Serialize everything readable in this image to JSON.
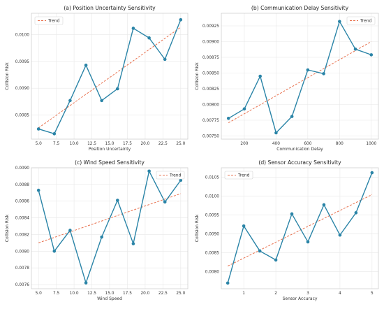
{
  "colors": {
    "series": "#2a84a7",
    "trend": "#e8714e",
    "grid": "#e8e8e8",
    "frame": "#cfcfcf"
  },
  "chart_data": [
    {
      "type": "line",
      "title": "(a) Position Uncertainty Sensitivity",
      "xlabel": "Position Uncertainty",
      "ylabel": "Collision Risk",
      "x": [
        5.0,
        7.22,
        9.44,
        11.67,
        13.89,
        16.11,
        18.33,
        20.56,
        22.78,
        25.0
      ],
      "series": [
        {
          "values": [
            0.00824,
            0.00815,
            0.00877,
            0.00943,
            0.00877,
            0.00899,
            0.01012,
            0.00994,
            0.00954,
            0.01028
          ]
        }
      ],
      "trend": {
        "name": "Trend",
        "start": 0.00826,
        "end": 0.01014
      },
      "xlim": [
        4.0,
        26.0
      ],
      "ylim": [
        0.00805,
        0.0104
      ],
      "xticks": [
        5.0,
        7.5,
        10.0,
        12.5,
        15.0,
        17.5,
        20.0,
        22.5,
        25.0
      ],
      "xtick_labels": [
        "5.0",
        "7.5",
        "10.0",
        "12.5",
        "15.0",
        "17.5",
        "20.0",
        "22.5",
        "25.0"
      ],
      "yticks": [
        0.0085,
        0.009,
        0.0095,
        0.01
      ],
      "ytick_labels": [
        "0.0085",
        "0.0090",
        "0.0095",
        "0.0100"
      ],
      "grid": true,
      "legend_position": "top-left"
    },
    {
      "type": "line",
      "title": "(b) Communication Delay Sensitivity",
      "xlabel": "Communication Delay",
      "ylabel": "Collision Risk",
      "x": [
        100,
        200,
        300,
        400,
        500,
        600,
        700,
        800,
        900,
        1000
      ],
      "series": [
        {
          "values": [
            0.00778,
            0.00793,
            0.00845,
            0.00755,
            0.00781,
            0.00855,
            0.00849,
            0.00932,
            0.00888,
            0.00879
          ]
        }
      ],
      "trend": {
        "name": "Trend",
        "start": 0.00771,
        "end": 0.009
      },
      "xlim": [
        55,
        1045
      ],
      "ylim": [
        0.00745,
        0.00945
      ],
      "xticks": [
        200,
        400,
        600,
        800,
        1000
      ],
      "xtick_labels": [
        "200",
        "400",
        "600",
        "800",
        "1000"
      ],
      "yticks": [
        0.0075,
        0.00775,
        0.008,
        0.00825,
        0.0085,
        0.00875,
        0.009,
        0.00925
      ],
      "ytick_labels": [
        "0.00750",
        "0.00775",
        "0.00800",
        "0.00825",
        "0.00850",
        "0.00875",
        "0.00900",
        "0.00925"
      ],
      "grid": true,
      "legend_position": "top-right"
    },
    {
      "type": "line",
      "title": "(c) Wind Speed Sensitivity",
      "xlabel": "Wind Speed",
      "ylabel": "Collision Risk",
      "x": [
        5.0,
        7.22,
        9.44,
        11.67,
        13.89,
        16.11,
        18.33,
        20.56,
        22.78,
        25.0
      ],
      "series": [
        {
          "values": [
            0.00873,
            0.008,
            0.00825,
            0.00762,
            0.00817,
            0.00861,
            0.00809,
            0.00896,
            0.00859,
            0.00885
          ]
        }
      ],
      "trend": {
        "name": "Trend",
        "start": 0.0081,
        "end": 0.00869
      },
      "xlim": [
        4.0,
        26.0
      ],
      "ylim": [
        0.00755,
        0.009
      ],
      "xticks": [
        5.0,
        7.5,
        10.0,
        12.5,
        15.0,
        17.5,
        20.0,
        22.5,
        25.0
      ],
      "xtick_labels": [
        "5.0",
        "7.5",
        "10.0",
        "12.5",
        "15.0",
        "17.5",
        "20.0",
        "22.5",
        "25.0"
      ],
      "yticks": [
        0.0076,
        0.0078,
        0.008,
        0.0082,
        0.0084,
        0.0086,
        0.0088,
        0.009
      ],
      "ytick_labels": [
        "0.0076",
        "0.0078",
        "0.0080",
        "0.0082",
        "0.0084",
        "0.0086",
        "0.0088",
        "0.0090"
      ],
      "grid": true,
      "legend_position": "top-right"
    },
    {
      "type": "line",
      "title": "(d) Sensor Accuracy Sensitivity",
      "xlabel": "Sensor Accuracy",
      "ylabel": "Collision Risk",
      "x": [
        0.5,
        1.0,
        1.5,
        2.0,
        2.5,
        3.0,
        3.5,
        4.0,
        4.5,
        5.0
      ],
      "series": [
        {
          "values": [
            0.0077,
            0.00921,
            0.00855,
            0.00831,
            0.00953,
            0.00879,
            0.00977,
            0.00897,
            0.00956,
            0.01062
          ]
        }
      ],
      "trend": {
        "name": "Trend",
        "start": 0.00815,
        "end": 0.01004
      },
      "xlim": [
        0.3,
        5.2
      ],
      "ylim": [
        0.00755,
        0.01075
      ],
      "xticks": [
        1,
        2,
        3,
        4,
        5
      ],
      "xtick_labels": [
        "1",
        "2",
        "3",
        "4",
        "5"
      ],
      "yticks": [
        0.008,
        0.0085,
        0.009,
        0.0095,
        0.01,
        0.0105
      ],
      "ytick_labels": [
        "0.0080",
        "0.0085",
        "0.0090",
        "0.0095",
        "0.0100",
        "0.0105"
      ],
      "grid": true,
      "legend_position": "top-left"
    }
  ]
}
